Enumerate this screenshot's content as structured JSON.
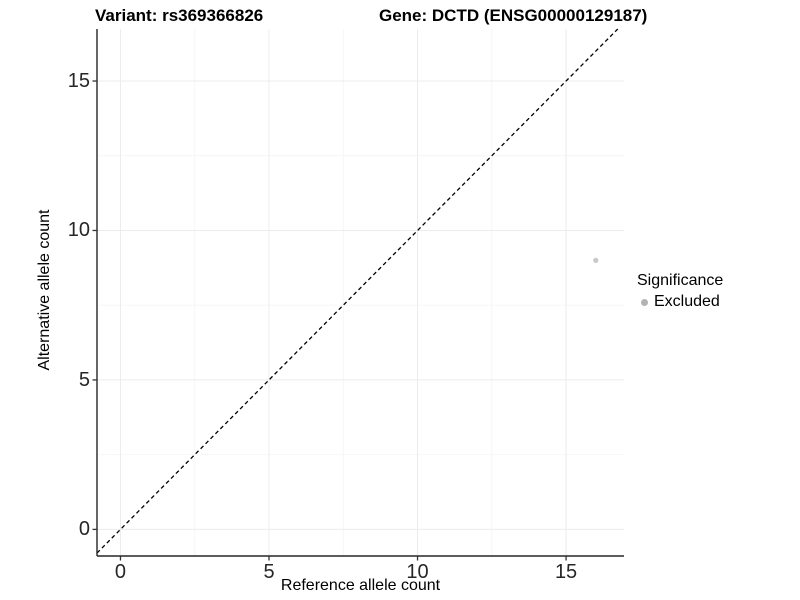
{
  "header": {
    "left_title": "Variant: rs369366826",
    "right_title": "Gene: DCTD (ENSG00000129187)"
  },
  "chart_data": {
    "type": "scatter",
    "title_left": "Variant: rs369366826",
    "title_right": "Gene: DCTD (ENSG00000129187)",
    "xlabel": "Reference allele count",
    "ylabel": "Alternative allele count",
    "xlim": [
      -0.79,
      16.95
    ],
    "ylim": [
      -0.89,
      16.74
    ],
    "x_ticks": [
      0,
      5,
      10,
      15
    ],
    "y_ticks": [
      0,
      5,
      10,
      15
    ],
    "x_minor_ticks": [
      2.5,
      7.5,
      12.5
    ],
    "y_minor_ticks": [
      2.5,
      7.5,
      12.5
    ],
    "grid": {
      "major_color": "#ececec",
      "minor_color": "#f5f5f5",
      "background": "#ffffff"
    },
    "identity_line": {
      "equation": "y = x",
      "style": "dashed",
      "color": "#000000"
    },
    "series": [
      {
        "name": "Excluded",
        "color": "#c9c9c9",
        "points": [
          {
            "x": 16,
            "y": 9
          }
        ]
      }
    ],
    "legend": {
      "title": "Significance",
      "position": "right",
      "items": [
        {
          "label": "Excluded",
          "color": "#b3b3b3"
        }
      ]
    },
    "axis": {
      "line_color": "#262626",
      "tick_color": "#333333",
      "tick_label_color": "#262626"
    }
  }
}
